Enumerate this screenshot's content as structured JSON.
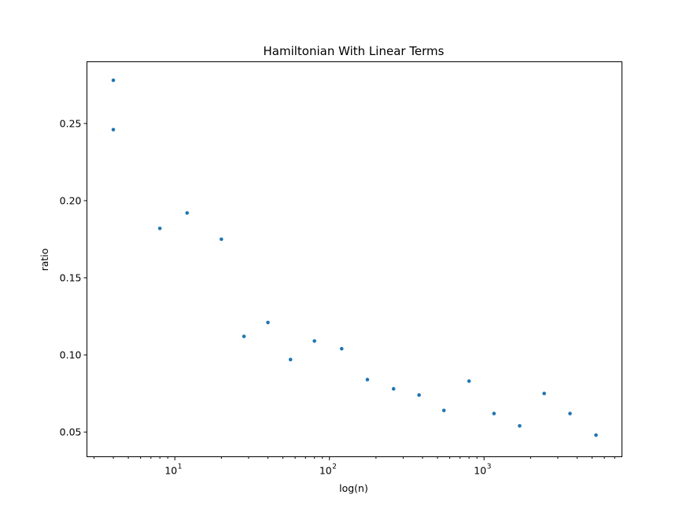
{
  "chart_data": {
    "type": "scatter",
    "title": "Hamiltonian With Linear Terms",
    "xlabel": "log(n)",
    "ylabel": "ratio",
    "xscale": "log",
    "xlim": [
      2.7,
      7800
    ],
    "ylim": [
      0.034,
      0.29
    ],
    "grid": false,
    "legend": "none",
    "marker_color": "#1f77b4",
    "x_major_ticks": [
      {
        "value": 10,
        "base": "10",
        "exp": "1"
      },
      {
        "value": 100,
        "base": "10",
        "exp": "2"
      },
      {
        "value": 1000,
        "base": "10",
        "exp": "3"
      }
    ],
    "y_ticks": [
      {
        "value": 0.05,
        "label": "0.05"
      },
      {
        "value": 0.1,
        "label": "0.10"
      },
      {
        "value": 0.15,
        "label": "0.15"
      },
      {
        "value": 0.2,
        "label": "0.20"
      },
      {
        "value": 0.25,
        "label": "0.25"
      }
    ],
    "points": [
      {
        "x": 4,
        "y": 0.278
      },
      {
        "x": 4,
        "y": 0.246
      },
      {
        "x": 8,
        "y": 0.182
      },
      {
        "x": 12,
        "y": 0.192
      },
      {
        "x": 20,
        "y": 0.175
      },
      {
        "x": 28,
        "y": 0.112
      },
      {
        "x": 40,
        "y": 0.121
      },
      {
        "x": 56,
        "y": 0.097
      },
      {
        "x": 80,
        "y": 0.109
      },
      {
        "x": 120,
        "y": 0.104
      },
      {
        "x": 176,
        "y": 0.084
      },
      {
        "x": 260,
        "y": 0.078
      },
      {
        "x": 380,
        "y": 0.074
      },
      {
        "x": 550,
        "y": 0.064
      },
      {
        "x": 800,
        "y": 0.083
      },
      {
        "x": 1160,
        "y": 0.062
      },
      {
        "x": 1700,
        "y": 0.054
      },
      {
        "x": 2450,
        "y": 0.075
      },
      {
        "x": 3600,
        "y": 0.062
      },
      {
        "x": 5300,
        "y": 0.048
      }
    ]
  }
}
